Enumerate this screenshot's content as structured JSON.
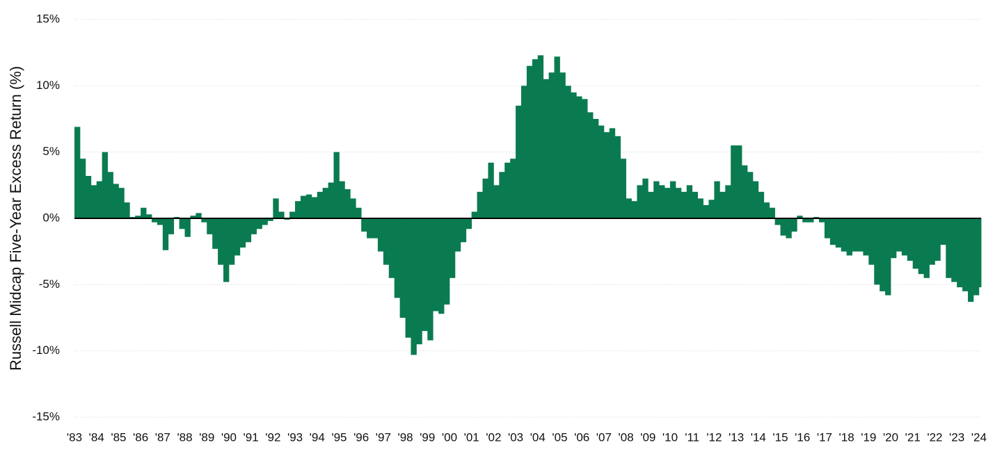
{
  "chart_data": {
    "type": "bar",
    "y_label": "Russell Midcap Five-Year Excess Return (%)",
    "color": "#0a7b50",
    "grid": true,
    "xlim": [
      1983,
      2024.1
    ],
    "ylim": [
      -15,
      15
    ],
    "yticks": [
      {
        "value": -15,
        "label": "-15%"
      },
      {
        "value": -10,
        "label": "-10%"
      },
      {
        "value": -5,
        "label": "-5%"
      },
      {
        "value": 0,
        "label": "0%"
      },
      {
        "value": 5,
        "label": "5%"
      },
      {
        "value": 10,
        "label": "10%"
      },
      {
        "value": 15,
        "label": "15%"
      }
    ],
    "xticks": [
      {
        "value": 1983,
        "label": "'83"
      },
      {
        "value": 1984,
        "label": "'84"
      },
      {
        "value": 1985,
        "label": "'85"
      },
      {
        "value": 1986,
        "label": "'86"
      },
      {
        "value": 1987,
        "label": "'87"
      },
      {
        "value": 1988,
        "label": "'88"
      },
      {
        "value": 1989,
        "label": "'89"
      },
      {
        "value": 1990,
        "label": "'90"
      },
      {
        "value": 1991,
        "label": "'91"
      },
      {
        "value": 1992,
        "label": "'92"
      },
      {
        "value": 1993,
        "label": "'93"
      },
      {
        "value": 1994,
        "label": "'94"
      },
      {
        "value": 1995,
        "label": "'95"
      },
      {
        "value": 1996,
        "label": "'96"
      },
      {
        "value": 1997,
        "label": "'97"
      },
      {
        "value": 1998,
        "label": "'98"
      },
      {
        "value": 1999,
        "label": "'99"
      },
      {
        "value": 2000,
        "label": "'00"
      },
      {
        "value": 2001,
        "label": "'01"
      },
      {
        "value": 2002,
        "label": "'02"
      },
      {
        "value": 2003,
        "label": "'03"
      },
      {
        "value": 2004,
        "label": "'04"
      },
      {
        "value": 2005,
        "label": "'05"
      },
      {
        "value": 2006,
        "label": "'06"
      },
      {
        "value": 2007,
        "label": "'07"
      },
      {
        "value": 2008,
        "label": "'08"
      },
      {
        "value": 2009,
        "label": "'09"
      },
      {
        "value": 2010,
        "label": "'10"
      },
      {
        "value": 2011,
        "label": "'11"
      },
      {
        "value": 2012,
        "label": "'12"
      },
      {
        "value": 2013,
        "label": "'13"
      },
      {
        "value": 2014,
        "label": "'14"
      },
      {
        "value": 2015,
        "label": "'15"
      },
      {
        "value": 2016,
        "label": "'16"
      },
      {
        "value": 2017,
        "label": "'17"
      },
      {
        "value": 2018,
        "label": "'18"
      },
      {
        "value": 2019,
        "label": "'19"
      },
      {
        "value": 2020,
        "label": "'20"
      },
      {
        "value": 2021,
        "label": "'21"
      },
      {
        "value": 2022,
        "label": "'22"
      },
      {
        "value": 2023,
        "label": "'23"
      },
      {
        "value": 2024,
        "label": "'24"
      }
    ],
    "x": [
      1983,
      1983.25,
      1983.5,
      1983.75,
      1984,
      1984.25,
      1984.5,
      1984.75,
      1985,
      1985.25,
      1985.5,
      1985.75,
      1986,
      1986.25,
      1986.5,
      1986.75,
      1987,
      1987.25,
      1987.5,
      1987.75,
      1988,
      1988.25,
      1988.5,
      1988.75,
      1989,
      1989.25,
      1989.5,
      1989.75,
      1990,
      1990.25,
      1990.5,
      1990.75,
      1991,
      1991.25,
      1991.5,
      1991.75,
      1992,
      1992.25,
      1992.5,
      1992.75,
      1993,
      1993.25,
      1993.5,
      1993.75,
      1994,
      1994.25,
      1994.5,
      1994.75,
      1995,
      1995.25,
      1995.5,
      1995.75,
      1996,
      1996.25,
      1996.5,
      1996.75,
      1997,
      1997.25,
      1997.5,
      1997.75,
      1998,
      1998.25,
      1998.5,
      1998.75,
      1999,
      1999.25,
      1999.5,
      1999.75,
      2000,
      2000.25,
      2000.5,
      2000.75,
      2001,
      2001.25,
      2001.5,
      2001.75,
      2002,
      2002.25,
      2002.5,
      2002.75,
      2003,
      2003.25,
      2003.5,
      2003.75,
      2004,
      2004.25,
      2004.5,
      2004.75,
      2005,
      2005.25,
      2005.5,
      2005.75,
      2006,
      2006.25,
      2006.5,
      2006.75,
      2007,
      2007.25,
      2007.5,
      2007.75,
      2008,
      2008.25,
      2008.5,
      2008.75,
      2009,
      2009.25,
      2009.5,
      2009.75,
      2010,
      2010.25,
      2010.5,
      2010.75,
      2011,
      2011.25,
      2011.5,
      2011.75,
      2012,
      2012.25,
      2012.5,
      2012.75,
      2013,
      2013.25,
      2013.5,
      2013.75,
      2014,
      2014.25,
      2014.5,
      2014.75,
      2015,
      2015.25,
      2015.5,
      2015.75,
      2016,
      2016.25,
      2016.5,
      2016.75,
      2017,
      2017.25,
      2017.5,
      2017.75,
      2018,
      2018.25,
      2018.5,
      2018.75,
      2019,
      2019.25,
      2019.5,
      2019.75,
      2020,
      2020.25,
      2020.5,
      2020.75,
      2021,
      2021.25,
      2021.5,
      2021.75,
      2022,
      2022.25,
      2022.5,
      2022.75,
      2023,
      2023.25,
      2023.5,
      2023.75,
      2024
    ],
    "values": [
      6.9,
      4.5,
      3.2,
      2.5,
      2.8,
      5.0,
      3.5,
      2.6,
      2.3,
      1.2,
      0.1,
      0.2,
      0.8,
      0.3,
      -0.3,
      -0.5,
      -2.4,
      -1.2,
      0.1,
      -0.8,
      -1.4,
      0.2,
      0.4,
      -0.3,
      -1.2,
      -2.3,
      -3.5,
      -4.8,
      -3.5,
      -2.8,
      -2.2,
      -1.8,
      -1.2,
      -0.8,
      -0.5,
      -0.2,
      1.5,
      0.5,
      -0.1,
      0.5,
      1.3,
      1.7,
      1.8,
      1.6,
      2.0,
      2.3,
      2.7,
      5.0,
      2.8,
      2.2,
      1.5,
      0.8,
      -1.0,
      -1.5,
      -1.5,
      -2.5,
      -3.5,
      -4.5,
      -6.0,
      -7.5,
      -9.0,
      -10.3,
      -9.5,
      -8.5,
      -9.2,
      -7.0,
      -7.2,
      -6.5,
      -4.5,
      -2.5,
      -1.8,
      -0.8,
      0.5,
      2.0,
      3.0,
      4.2,
      2.5,
      3.5,
      4.2,
      4.5,
      8.5,
      10.0,
      11.5,
      12.0,
      12.3,
      10.5,
      11.0,
      12.2,
      11.0,
      10.0,
      9.5,
      9.2,
      9.0,
      8.0,
      7.5,
      7.0,
      6.5,
      6.8,
      6.2,
      4.5,
      1.5,
      1.3,
      2.5,
      3.0,
      2.0,
      2.8,
      2.5,
      2.3,
      2.8,
      2.3,
      2.0,
      2.5,
      2.0,
      1.5,
      1.0,
      1.4,
      2.8,
      2.0,
      2.5,
      5.5,
      5.5,
      4.0,
      3.5,
      2.8,
      2.0,
      1.2,
      0.8,
      -0.5,
      -1.3,
      -1.5,
      -1.0,
      0.2,
      -0.3,
      -0.3,
      0.1,
      -0.3,
      -1.5,
      -2.0,
      -2.2,
      -2.5,
      -2.8,
      -2.5,
      -2.5,
      -2.8,
      -3.5,
      -5.0,
      -5.5,
      -5.8,
      -3.0,
      -2.5,
      -2.8,
      -3.2,
      -3.8,
      -4.2,
      -4.5,
      -3.5,
      -3.2,
      -2.0,
      -4.5,
      -4.8,
      -5.2,
      -5.5,
      -6.3,
      -5.8,
      -5.2
    ]
  }
}
